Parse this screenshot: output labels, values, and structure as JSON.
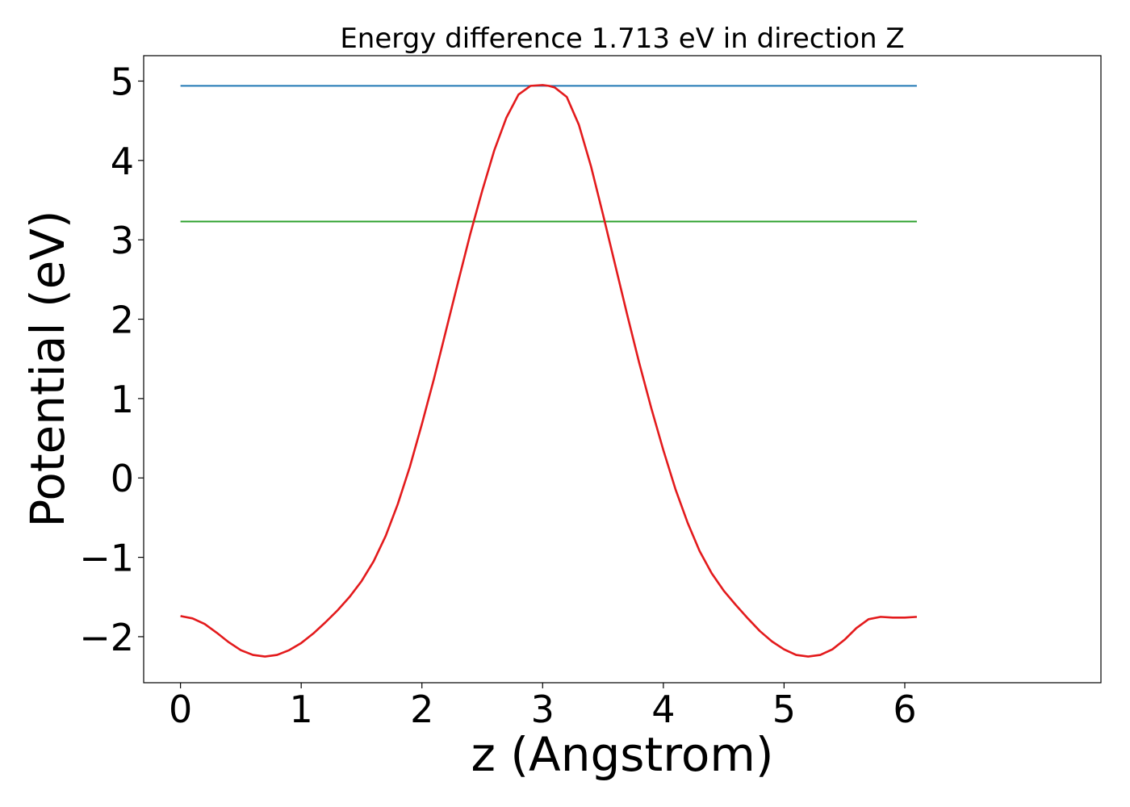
{
  "chart_data": {
    "type": "line",
    "title": "Energy difference 1.713 eV in direction Z",
    "xlabel": "z (Angstrom)",
    "ylabel": "Potential (eV)",
    "xlim": [
      -0.305,
      7.625
    ],
    "ylim": [
      -2.58,
      5.32
    ],
    "xticks": [
      0,
      1,
      2,
      3,
      4,
      5,
      6
    ],
    "yticks": [
      -2,
      -1,
      0,
      1,
      2,
      3,
      4,
      5
    ],
    "grid": false,
    "legend": "none",
    "series": [
      {
        "color": "#1f77b4",
        "x": [
          0,
          6.1
        ],
        "y": [
          4.94,
          4.94
        ]
      },
      {
        "color": "#2ca02c",
        "x": [
          0,
          6.1
        ],
        "y": [
          3.23,
          3.23
        ]
      },
      {
        "color": "#e31a1c",
        "x": [
          0,
          0.1,
          0.2,
          0.3,
          0.4,
          0.5,
          0.6,
          0.7,
          0.8,
          0.9,
          1.0,
          1.1,
          1.2,
          1.3,
          1.4,
          1.5,
          1.6,
          1.7,
          1.8,
          1.9,
          2.0,
          2.1,
          2.2,
          2.3,
          2.4,
          2.5,
          2.6,
          2.7,
          2.8,
          2.9,
          3.0,
          3.05,
          3.1,
          3.2,
          3.3,
          3.4,
          3.5,
          3.6,
          3.7,
          3.8,
          3.9,
          4.0,
          4.1,
          4.2,
          4.3,
          4.4,
          4.5,
          4.6,
          4.7,
          4.8,
          4.9,
          5.0,
          5.1,
          5.2,
          5.3,
          5.4,
          5.5,
          5.6,
          5.7,
          5.8,
          5.9,
          6.0,
          6.1
        ],
        "y": [
          -1.74,
          -1.77,
          -1.84,
          -1.95,
          -2.07,
          -2.17,
          -2.23,
          -2.25,
          -2.23,
          -2.17,
          -2.08,
          -1.96,
          -1.82,
          -1.67,
          -1.5,
          -1.3,
          -1.05,
          -0.73,
          -0.33,
          0.14,
          0.68,
          1.25,
          1.86,
          2.47,
          3.07,
          3.62,
          4.13,
          4.54,
          4.83,
          4.94,
          4.95,
          4.94,
          4.92,
          4.8,
          4.45,
          3.93,
          3.32,
          2.69,
          2.06,
          1.45,
          0.88,
          0.35,
          -0.14,
          -0.56,
          -0.92,
          -1.2,
          -1.42,
          -1.6,
          -1.77,
          -1.93,
          -2.06,
          -2.16,
          -2.23,
          -2.25,
          -2.23,
          -2.16,
          -2.04,
          -1.89,
          -1.78,
          -1.75,
          -1.76,
          -1.76,
          -1.75
        ]
      }
    ]
  }
}
